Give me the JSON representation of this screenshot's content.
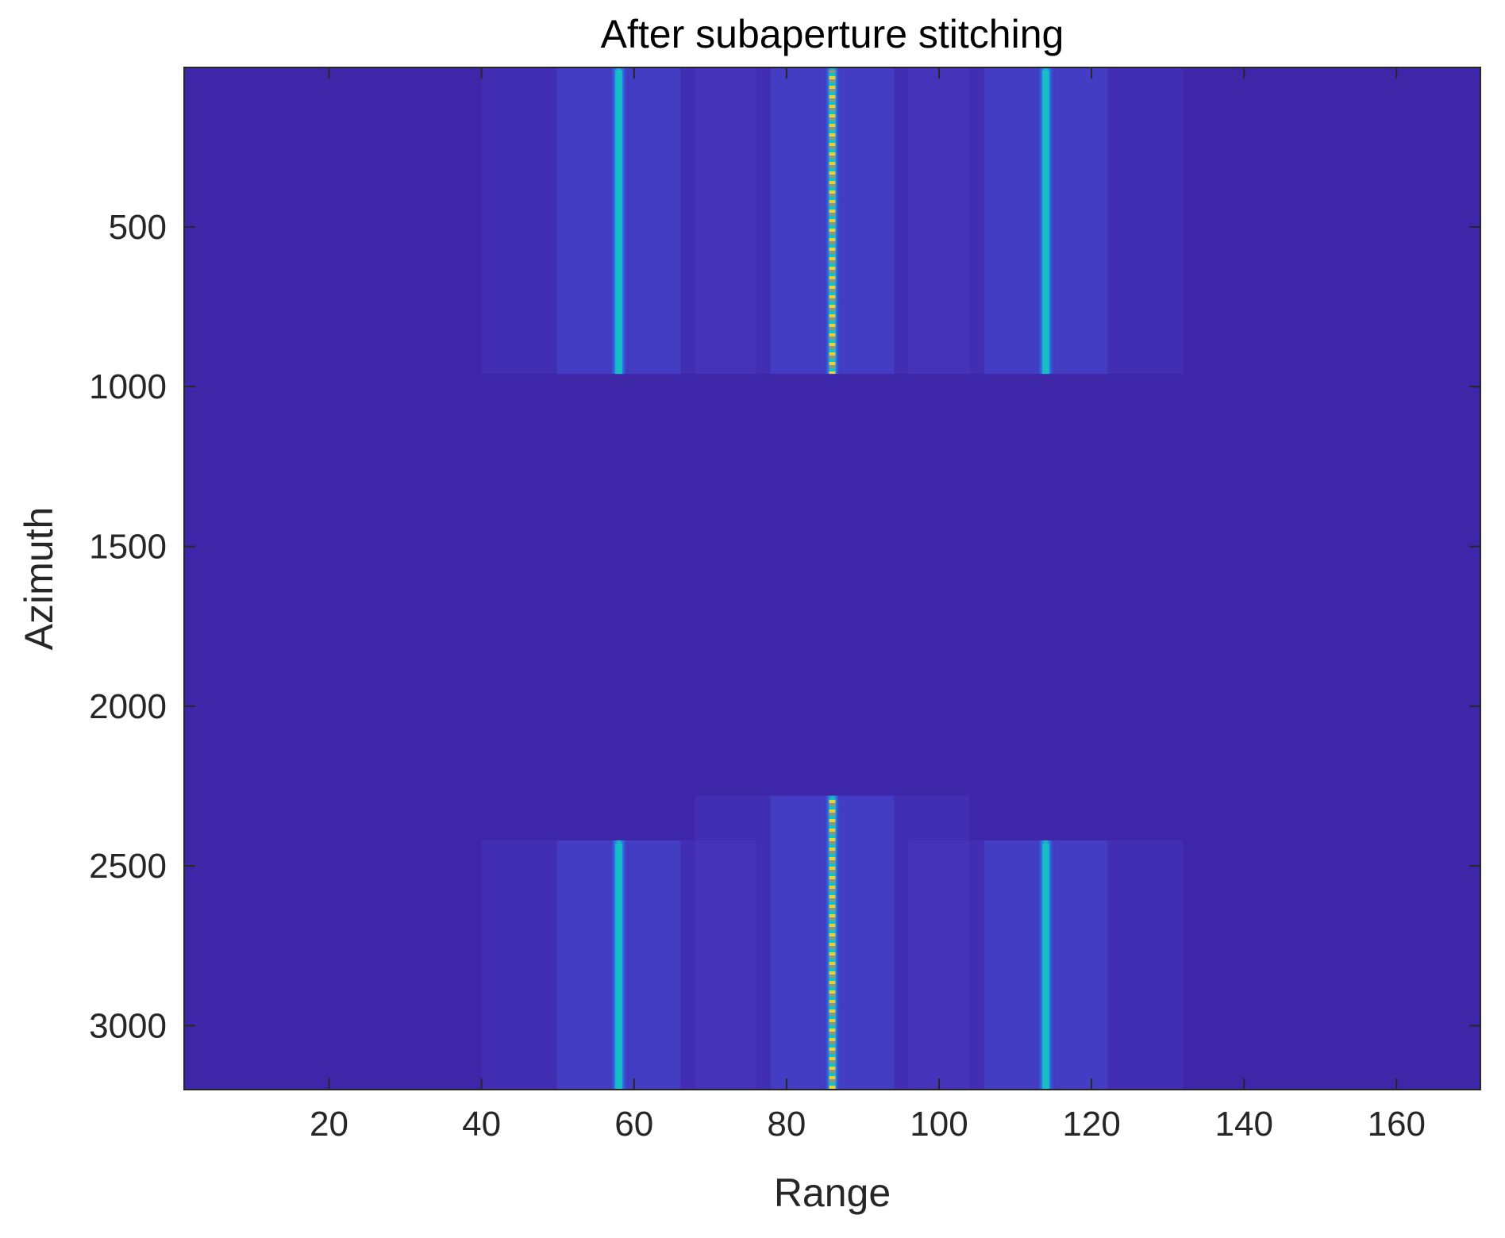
{
  "chart_data": {
    "type": "heatmap",
    "title": "After subaperture stitching",
    "xlabel": "Range",
    "ylabel": "Azimuth",
    "xlim": [
      1,
      171
    ],
    "ylim": [
      1,
      3200
    ],
    "y_direction": "reverse",
    "x_ticks": [
      20,
      40,
      60,
      80,
      100,
      120,
      140,
      160
    ],
    "y_ticks": [
      500,
      1000,
      1500,
      2000,
      2500,
      3000
    ],
    "colormap": "parula",
    "colors": {
      "background": "#3e26a8",
      "axis": "#262626",
      "stripe_low": "#2f6fe6",
      "stripe_mid": "#16c1c5",
      "stripe_high": "#e8d23a",
      "stripe_peak": "#f2793a"
    },
    "point_targets": [
      {
        "range": 58,
        "azimuth_segments": [
          [
            1,
            960
          ],
          [
            2420,
            3200
          ]
        ],
        "relative_intensity": 0.55
      },
      {
        "range": 86,
        "azimuth_segments": [
          [
            1,
            960
          ],
          [
            2280,
            3200
          ]
        ],
        "relative_intensity": 1.0
      },
      {
        "range": 114,
        "azimuth_segments": [
          [
            1,
            960
          ],
          [
            2420,
            3200
          ]
        ],
        "relative_intensity": 0.55
      }
    ]
  }
}
